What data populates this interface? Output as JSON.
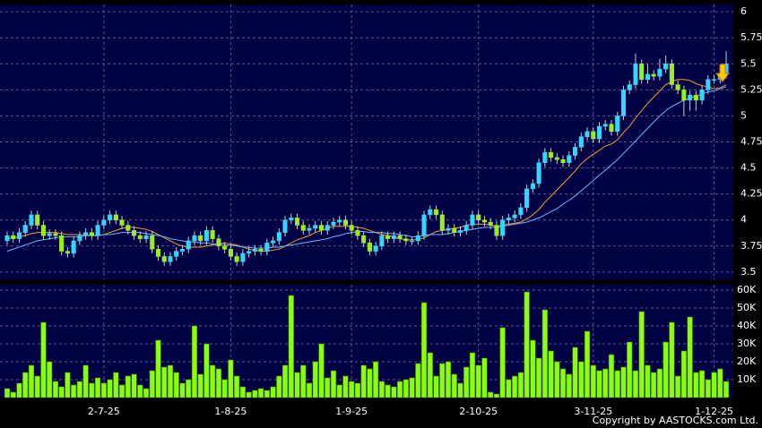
{
  "chart_data": {
    "type": "candlestick",
    "categories": [
      null,
      null,
      null,
      null,
      null,
      null,
      null,
      null,
      null,
      null,
      null,
      null,
      null,
      null,
      null,
      null,
      "2-7-25",
      null,
      null,
      null,
      null,
      null,
      null,
      null,
      null,
      null,
      null,
      null,
      null,
      null,
      null,
      null,
      null,
      null,
      null,
      null,
      null,
      "1-8-25",
      null,
      null,
      null,
      null,
      null,
      null,
      null,
      null,
      null,
      null,
      null,
      null,
      null,
      null,
      null,
      null,
      null,
      null,
      null,
      "1-9-25",
      null,
      null,
      null,
      null,
      null,
      null,
      null,
      null,
      null,
      null,
      null,
      null,
      null,
      null,
      null,
      null,
      null,
      null,
      null,
      null,
      "2-10-25",
      null,
      null,
      null,
      null,
      null,
      null,
      null,
      null,
      null,
      null,
      null,
      null,
      null,
      null,
      null,
      null,
      null,
      null,
      "3-11-25",
      null,
      null,
      null,
      null,
      null,
      null,
      null,
      null,
      null,
      null,
      null,
      null,
      null,
      null,
      null,
      null,
      null,
      null,
      null,
      "1-12-25",
      null,
      null
    ],
    "open": [
      3.8,
      3.85,
      3.82,
      3.88,
      3.95,
      4.05,
      3.95,
      3.85,
      3.87,
      3.85,
      3.7,
      3.68,
      3.8,
      3.85,
      3.88,
      3.85,
      3.95,
      4.0,
      4.05,
      4.0,
      3.95,
      3.9,
      3.85,
      3.82,
      3.85,
      3.72,
      3.65,
      3.6,
      3.65,
      3.7,
      3.72,
      3.8,
      3.85,
      3.8,
      3.9,
      3.82,
      3.75,
      3.72,
      3.65,
      3.6,
      3.68,
      3.7,
      3.72,
      3.7,
      3.78,
      3.8,
      3.88,
      4.0,
      4.02,
      3.95,
      3.9,
      3.92,
      3.95,
      3.9,
      3.95,
      3.98,
      4.0,
      3.95,
      3.9,
      3.85,
      3.78,
      3.7,
      3.75,
      3.85,
      3.82,
      3.85,
      3.82,
      3.8,
      3.8,
      3.85,
      4.05,
      4.1,
      4.05,
      3.9,
      3.92,
      3.88,
      3.9,
      3.95,
      4.05,
      4.0,
      3.98,
      3.95,
      3.85,
      4.0,
      4.02,
      4.05,
      4.12,
      4.3,
      4.35,
      4.55,
      4.65,
      4.6,
      4.58,
      4.55,
      4.62,
      4.7,
      4.8,
      4.85,
      4.78,
      4.9,
      4.92,
      4.85,
      5.0,
      5.25,
      5.3,
      5.5,
      5.35,
      5.4,
      5.38,
      5.45,
      5.5,
      5.3,
      5.25,
      5.15,
      5.2,
      5.15,
      5.25,
      5.35,
      5.35,
      5.4
    ],
    "high": [
      3.89,
      3.89,
      3.92,
      3.99,
      4.09,
      4.09,
      3.99,
      3.91,
      3.91,
      3.89,
      3.74,
      3.84,
      3.89,
      3.92,
      3.92,
      3.99,
      4.04,
      4.09,
      4.09,
      4.04,
      3.99,
      3.94,
      3.89,
      3.89,
      3.89,
      3.76,
      3.69,
      3.69,
      3.74,
      3.76,
      3.84,
      3.89,
      3.89,
      3.94,
      3.94,
      3.86,
      3.79,
      3.76,
      3.69,
      3.72,
      3.74,
      3.76,
      3.76,
      3.82,
      3.84,
      3.92,
      4.04,
      4.06,
      4.06,
      3.99,
      3.96,
      3.99,
      3.99,
      3.99,
      4.02,
      4.04,
      4.04,
      3.99,
      3.94,
      3.89,
      3.82,
      3.79,
      3.89,
      3.89,
      3.89,
      3.89,
      3.86,
      3.84,
      3.89,
      4.09,
      4.14,
      4.14,
      4.09,
      3.96,
      3.96,
      3.94,
      3.99,
      4.09,
      4.09,
      4.04,
      4.02,
      3.99,
      4.04,
      4.06,
      4.09,
      4.16,
      4.34,
      4.39,
      4.59,
      4.69,
      4.69,
      4.64,
      4.62,
      4.66,
      4.74,
      4.84,
      4.89,
      4.89,
      4.94,
      4.96,
      4.96,
      5.04,
      5.29,
      5.34,
      5.6,
      5.54,
      5.5,
      5.44,
      5.55,
      5.58,
      5.54,
      5.34,
      5.29,
      5.24,
      5.24,
      5.29,
      5.39,
      5.39,
      5.44,
      5.62
    ],
    "low": [
      3.76,
      3.78,
      3.78,
      3.84,
      3.91,
      3.91,
      3.81,
      3.81,
      3.81,
      3.66,
      3.64,
      3.64,
      3.76,
      3.81,
      3.81,
      3.81,
      3.91,
      3.96,
      3.96,
      3.91,
      3.86,
      3.81,
      3.78,
      3.78,
      3.68,
      3.61,
      3.56,
      3.56,
      3.61,
      3.66,
      3.68,
      3.76,
      3.76,
      3.76,
      3.78,
      3.71,
      3.68,
      3.61,
      3.56,
      3.56,
      3.64,
      3.66,
      3.66,
      3.66,
      3.74,
      3.76,
      3.84,
      3.96,
      3.91,
      3.86,
      3.86,
      3.88,
      3.86,
      3.86,
      3.91,
      3.94,
      3.91,
      3.86,
      3.81,
      3.74,
      3.66,
      3.66,
      3.71,
      3.78,
      3.78,
      3.78,
      3.76,
      3.76,
      3.76,
      3.81,
      4.01,
      4.01,
      3.86,
      3.86,
      3.84,
      3.84,
      3.86,
      3.91,
      3.96,
      3.94,
      3.91,
      3.81,
      3.81,
      3.96,
      3.98,
      4.01,
      4.08,
      4.26,
      4.31,
      4.51,
      4.56,
      4.54,
      4.51,
      4.51,
      4.58,
      4.66,
      4.76,
      4.74,
      4.74,
      4.86,
      4.81,
      4.81,
      4.96,
      5.21,
      5.26,
      5.31,
      5.31,
      5.34,
      5.34,
      5.41,
      5.26,
      5.21,
      5.0,
      5.05,
      5.05,
      5.11,
      5.21,
      5.31,
      5.31,
      5.36
    ],
    "close": [
      3.85,
      3.82,
      3.88,
      3.95,
      4.05,
      3.95,
      3.85,
      3.87,
      3.85,
      3.7,
      3.68,
      3.8,
      3.85,
      3.88,
      3.85,
      3.95,
      4.0,
      4.05,
      4.0,
      3.95,
      3.9,
      3.85,
      3.82,
      3.85,
      3.72,
      3.65,
      3.6,
      3.65,
      3.7,
      3.72,
      3.8,
      3.85,
      3.8,
      3.9,
      3.82,
      3.75,
      3.72,
      3.65,
      3.6,
      3.68,
      3.7,
      3.72,
      3.7,
      3.78,
      3.8,
      3.88,
      4.0,
      4.02,
      3.95,
      3.9,
      3.92,
      3.95,
      3.9,
      3.95,
      3.98,
      4.0,
      3.95,
      3.9,
      3.85,
      3.78,
      3.7,
      3.75,
      3.85,
      3.82,
      3.85,
      3.82,
      3.8,
      3.8,
      3.85,
      4.05,
      4.1,
      4.05,
      3.9,
      3.92,
      3.88,
      3.9,
      3.95,
      4.05,
      4.0,
      3.98,
      3.95,
      3.85,
      4.0,
      4.02,
      4.05,
      4.12,
      4.3,
      4.35,
      4.55,
      4.65,
      4.6,
      4.58,
      4.55,
      4.62,
      4.7,
      4.8,
      4.85,
      4.78,
      4.9,
      4.92,
      4.85,
      5.0,
      5.25,
      5.3,
      5.5,
      5.35,
      5.4,
      5.38,
      5.45,
      5.5,
      5.3,
      5.25,
      5.15,
      5.2,
      5.15,
      5.25,
      5.35,
      5.35,
      5.4,
      5.5
    ],
    "up_color": "#33d6ff",
    "down_color": "#99ee22",
    "ylim": [
      3.43,
      6.07
    ],
    "yticks": [
      3.5,
      3.75,
      4,
      4.25,
      4.5,
      4.75,
      5,
      5.25,
      5.5,
      5.75,
      6
    ],
    "grid": true,
    "ma": [
      {
        "color": "#ff9933",
        "values": [
          3.82,
          3.83,
          3.84,
          3.85,
          3.87,
          3.88,
          3.88,
          3.88,
          3.88,
          3.87,
          3.86,
          3.86,
          3.86,
          3.86,
          3.85,
          3.85,
          3.86,
          3.88,
          3.9,
          3.92,
          3.93,
          3.93,
          3.92,
          3.91,
          3.89,
          3.86,
          3.83,
          3.8,
          3.77,
          3.75,
          3.74,
          3.74,
          3.74,
          3.75,
          3.76,
          3.77,
          3.78,
          3.77,
          3.76,
          3.74,
          3.72,
          3.71,
          3.7,
          3.7,
          3.71,
          3.72,
          3.75,
          3.78,
          3.81,
          3.83,
          3.85,
          3.88,
          3.9,
          3.92,
          3.94,
          3.94,
          3.94,
          3.94,
          3.93,
          3.92,
          3.9,
          3.88,
          3.86,
          3.85,
          3.84,
          3.82,
          3.81,
          3.81,
          3.81,
          3.83,
          3.86,
          3.89,
          3.9,
          3.91,
          3.92,
          3.93,
          3.95,
          3.96,
          3.96,
          3.96,
          3.95,
          3.94,
          3.95,
          3.96,
          3.97,
          3.98,
          4.01,
          4.05,
          4.1,
          4.17,
          4.23,
          4.29,
          4.35,
          4.41,
          4.47,
          4.54,
          4.59,
          4.63,
          4.67,
          4.71,
          4.73,
          4.77,
          4.84,
          4.9,
          4.98,
          5.05,
          5.12,
          5.18,
          5.24,
          5.3,
          5.33,
          5.35,
          5.35,
          5.34,
          5.31,
          5.29,
          5.28,
          5.26,
          5.27,
          5.3
        ]
      },
      {
        "color": "#66bbff",
        "values": [
          3.7,
          3.72,
          3.74,
          3.76,
          3.78,
          3.8,
          3.81,
          3.82,
          3.83,
          3.84,
          3.84,
          3.84,
          3.84,
          3.85,
          3.85,
          3.85,
          3.86,
          3.86,
          3.87,
          3.88,
          3.88,
          3.88,
          3.88,
          3.87,
          3.86,
          3.85,
          3.84,
          3.82,
          3.81,
          3.8,
          3.79,
          3.79,
          3.78,
          3.78,
          3.77,
          3.77,
          3.76,
          3.76,
          3.75,
          3.74,
          3.74,
          3.73,
          3.73,
          3.73,
          3.74,
          3.74,
          3.75,
          3.76,
          3.77,
          3.78,
          3.79,
          3.8,
          3.81,
          3.82,
          3.84,
          3.85,
          3.87,
          3.88,
          3.89,
          3.89,
          3.88,
          3.88,
          3.88,
          3.87,
          3.87,
          3.86,
          3.85,
          3.84,
          3.84,
          3.85,
          3.86,
          3.86,
          3.86,
          3.87,
          3.88,
          3.89,
          3.9,
          3.91,
          3.92,
          3.93,
          3.93,
          3.93,
          3.94,
          3.95,
          3.96,
          3.97,
          3.98,
          4.0,
          4.02,
          4.05,
          4.08,
          4.11,
          4.15,
          4.19,
          4.23,
          4.28,
          4.33,
          4.38,
          4.43,
          4.48,
          4.53,
          4.58,
          4.64,
          4.7,
          4.76,
          4.82,
          4.88,
          4.94,
          5.0,
          5.05,
          5.09,
          5.12,
          5.15,
          5.17,
          5.19,
          5.21,
          5.23,
          5.24,
          5.26,
          5.28
        ]
      }
    ],
    "volume": {
      "color": "#88ff11",
      "ylim": [
        0,
        63000
      ],
      "yticks": [
        {
          "value": 10000,
          "label": "10K"
        },
        {
          "value": 20000,
          "label": "20K"
        },
        {
          "value": 30000,
          "label": "30K"
        },
        {
          "value": 40000,
          "label": "40K"
        },
        {
          "value": 50000,
          "label": "50K"
        },
        {
          "value": 60000,
          "label": "60K"
        }
      ],
      "values": [
        5000,
        3000,
        8000,
        14000,
        18000,
        12000,
        42000,
        20000,
        9000,
        6000,
        14000,
        7000,
        9000,
        18000,
        8000,
        11000,
        8000,
        10000,
        14000,
        7000,
        12000,
        13000,
        7000,
        5000,
        15000,
        32000,
        17000,
        18000,
        14000,
        8000,
        10000,
        40000,
        13000,
        30000,
        18000,
        16000,
        10000,
        21000,
        12000,
        6000,
        3000,
        4000,
        5000,
        4000,
        6000,
        12000,
        18000,
        57000,
        14000,
        18000,
        8000,
        20000,
        30000,
        11000,
        15000,
        7000,
        12000,
        9000,
        8000,
        18000,
        16000,
        20000,
        9000,
        7000,
        6000,
        9000,
        10000,
        11000,
        19000,
        53000,
        25000,
        12000,
        19000,
        20000,
        13000,
        8000,
        17000,
        25000,
        18000,
        22000,
        3000,
        2000,
        39000,
        10000,
        12000,
        14000,
        59000,
        32000,
        22000,
        49000,
        26000,
        20000,
        16000,
        13000,
        28000,
        20000,
        37000,
        18000,
        15000,
        16000,
        24000,
        15000,
        17000,
        31000,
        15000,
        48000,
        18000,
        14000,
        16000,
        31000,
        42000,
        12000,
        26000,
        45000,
        14000,
        15000,
        10000,
        14000,
        16000,
        9000
      ]
    },
    "copyright": "Copyright by AASTOCKS.com Ltd."
  }
}
